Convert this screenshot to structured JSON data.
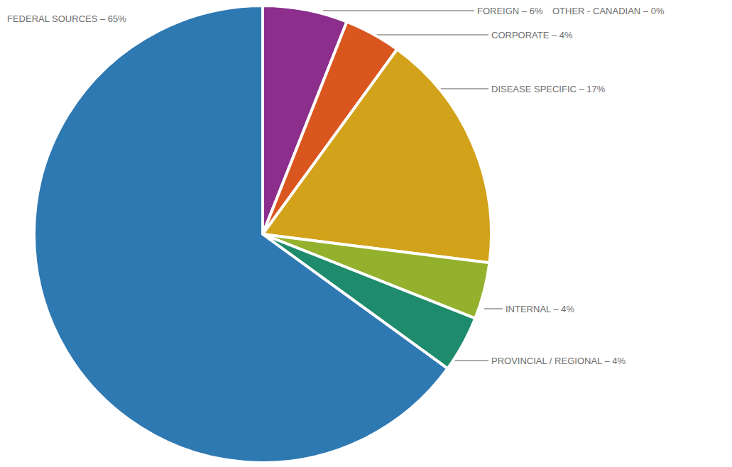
{
  "chart_data": {
    "type": "pie",
    "categories": [
      "FOREIGN – 6%",
      "OTHER - CANADIAN – 0%",
      "CORPORATE – 4%",
      "DISEASE SPECIFIC – 17%",
      "INTERNAL – 4%",
      "PROVINCIAL / REGIONAL – 4%",
      "FEDERAL SOURCES – 65%"
    ],
    "values": [
      6,
      0,
      4,
      17,
      4,
      4,
      65
    ],
    "colors": [
      "#8b2e8c",
      "#9a9a9a",
      "#d9561f",
      "#d2a21a",
      "#93b12c",
      "#1d8b6c",
      "#2f79b3"
    ]
  }
}
